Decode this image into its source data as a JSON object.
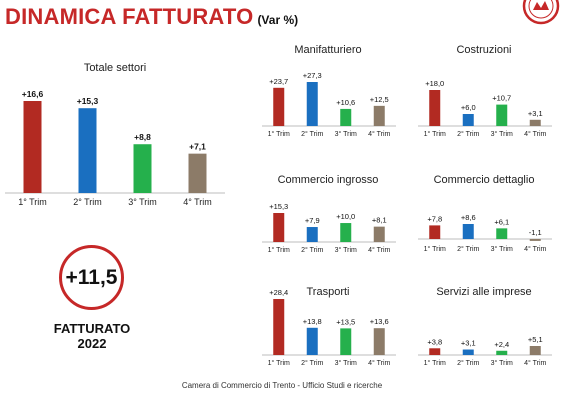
{
  "header": {
    "title": "DINAMICA FATTURATO",
    "subtitle": "(Var %)"
  },
  "badge": {
    "value": "+11,5",
    "label_line1": "FATTURATO",
    "label_line2": "2022"
  },
  "footer": {
    "text": "Camera di Commercio di Trento - Ufficio Studi e ricerche"
  },
  "colors": {
    "q1": "#b22a22",
    "q2": "#1a6fc0",
    "q3": "#25b04c",
    "q4": "#8c7b68",
    "title": "#c62828"
  },
  "chart_data": [
    {
      "type": "bar",
      "title": "Totale settori",
      "categories": [
        "1° Trim",
        "2° Trim",
        "3° Trim",
        "4° Trim"
      ],
      "values": [
        16.6,
        15.3,
        8.8,
        7.1
      ],
      "labels": [
        "+16,6",
        "+15,3",
        "+8,8",
        "+7,1"
      ]
    },
    {
      "type": "bar",
      "title": "Manifatturiero",
      "categories": [
        "1° Trim",
        "2° Trim",
        "3° Trim",
        "4° Trim"
      ],
      "values": [
        23.7,
        27.3,
        10.6,
        12.5
      ],
      "labels": [
        "+23,7",
        "+27,3",
        "+10,6",
        "+12,5"
      ]
    },
    {
      "type": "bar",
      "title": "Costruzioni",
      "categories": [
        "1° Trim",
        "2° Trim",
        "3° Trim",
        "4° Trim"
      ],
      "values": [
        18.0,
        6.0,
        10.7,
        3.1
      ],
      "labels": [
        "+18,0",
        "+6,0",
        "+10,7",
        "+3,1"
      ]
    },
    {
      "type": "bar",
      "title": "Commercio ingrosso",
      "categories": [
        "1° Trim",
        "2° Trim",
        "3° Trim",
        "4° Trim"
      ],
      "values": [
        15.3,
        7.9,
        10.0,
        8.1
      ],
      "labels": [
        "+15,3",
        "+7,9",
        "+10,0",
        "+8,1"
      ]
    },
    {
      "type": "bar",
      "title": "Commercio dettaglio",
      "categories": [
        "1° Trim",
        "2° Trim",
        "3° Trim",
        "4° Trim"
      ],
      "values": [
        7.8,
        8.6,
        6.1,
        -1.1
      ],
      "labels": [
        "+7,8",
        "+8,6",
        "+6,1",
        "-1,1"
      ]
    },
    {
      "type": "bar",
      "title": "Trasporti",
      "categories": [
        "1° Trim",
        "2° Trim",
        "3° Trim",
        "4° Trim"
      ],
      "values": [
        28.4,
        13.8,
        13.5,
        13.6
      ],
      "labels": [
        "+28,4",
        "+13,8",
        "+13,5",
        "+13,6"
      ]
    },
    {
      "type": "bar",
      "title": "Servizi alle imprese",
      "categories": [
        "1° Trim",
        "2° Trim",
        "3° Trim",
        "4° Trim"
      ],
      "values": [
        3.8,
        3.1,
        2.4,
        5.1
      ],
      "labels": [
        "+3,8",
        "+3,1",
        "+2,4",
        "+5,1"
      ]
    }
  ]
}
